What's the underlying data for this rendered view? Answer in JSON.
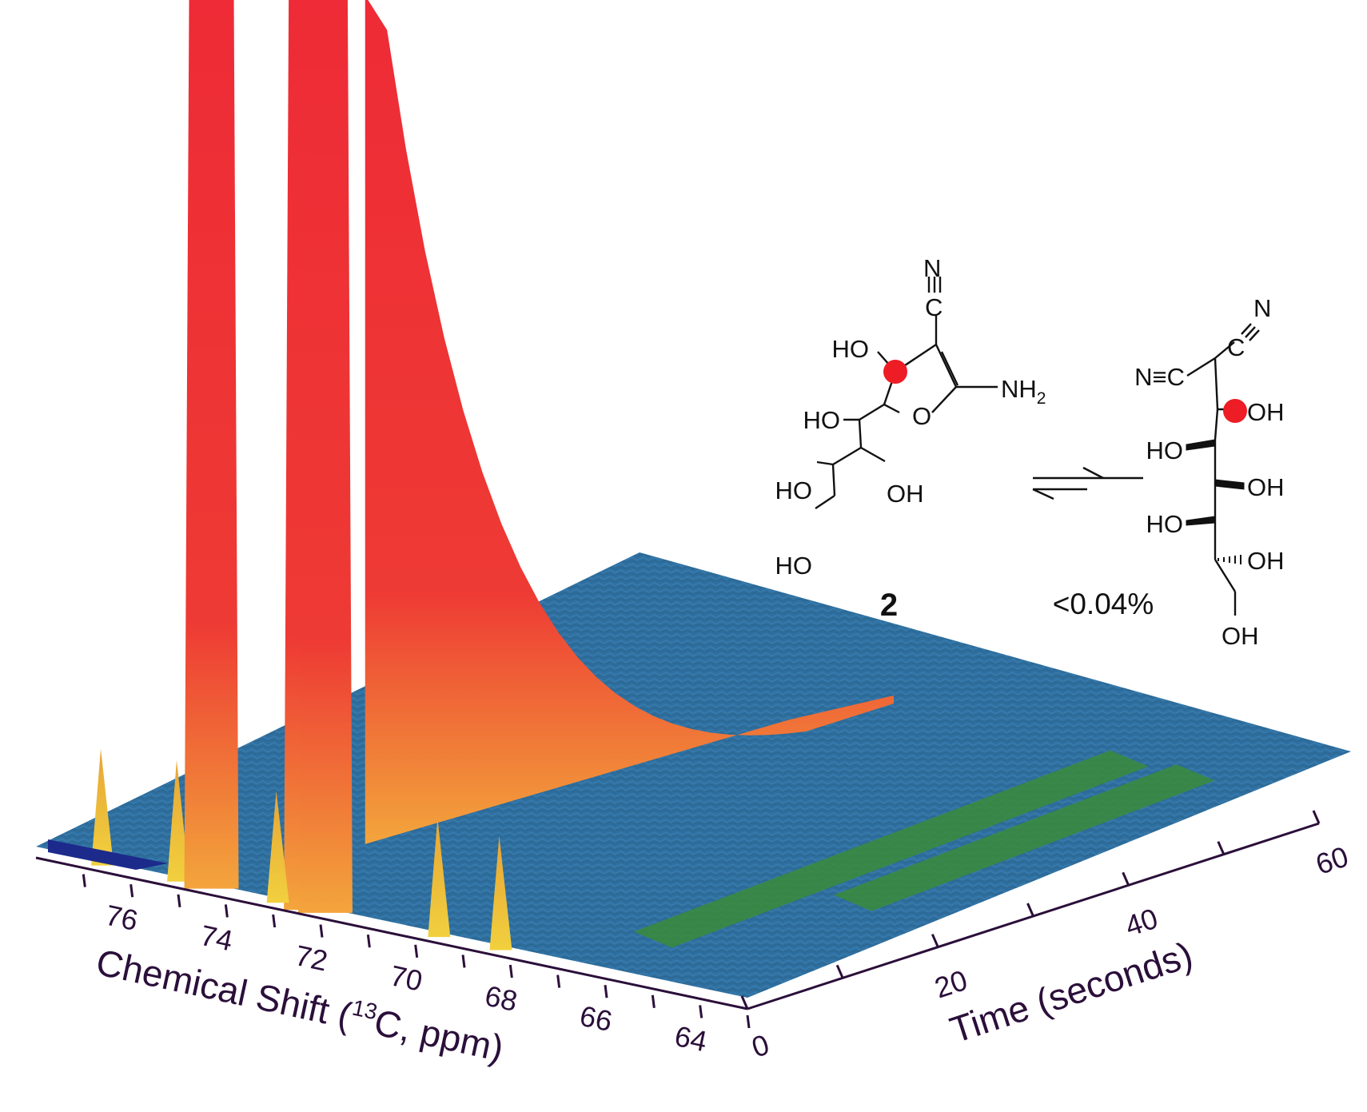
{
  "chart_data": {
    "type": "surface",
    "x_axis": {
      "label_parts": [
        "Chemical Shift (",
        "13",
        "C, ppm)"
      ],
      "ticks": [
        "76",
        "74",
        "72",
        "70",
        "68",
        "66",
        "64"
      ],
      "range": [
        63,
        78
      ],
      "reversed": true
    },
    "y_axis": {
      "label": "Time (seconds)",
      "ticks": [
        "0",
        "20",
        "40",
        "60"
      ],
      "range": [
        0,
        60
      ]
    },
    "peaks": [
      {
        "ppm": 76.6,
        "height": 0.08,
        "decay": 0.02
      },
      {
        "ppm": 75.0,
        "height": 0.1,
        "decay": 0.02
      },
      {
        "ppm": 74.3,
        "height": 1.0,
        "decay": 0.85
      },
      {
        "ppm": 72.2,
        "height": 1.0,
        "decay": 0.85
      },
      {
        "ppm": 71.9,
        "height": 1.0,
        "decay": 0.85
      },
      {
        "ppm": 72.9,
        "height": 0.06,
        "decay": 0.02
      },
      {
        "ppm": 69.5,
        "height": 0.09,
        "decay": 0.02
      },
      {
        "ppm": 68.2,
        "height": 0.07,
        "decay": 0.02
      }
    ],
    "surface_colors": {
      "high": "#ee2b36",
      "mid": "#f2a23c",
      "low_mid": "#f6d23e",
      "baseline": "#2f6fa3",
      "green": "#2e8b3e",
      "deep": "#1c2a8c"
    }
  },
  "scheme": {
    "compound_label": "2",
    "equilibrium_text": "<0.04%",
    "labels_left": {
      "n_top": "N",
      "c_top": "C",
      "ho_ring": "HO",
      "nh2_main": "NH",
      "nh2_sub": "2",
      "o_ring": "O",
      "ho_1": "HO",
      "ho_2": "HO",
      "oh_2": "OH",
      "ho_3": "HO"
    },
    "labels_right": {
      "n_top": "N",
      "c_top": "C",
      "nc_left": "N≡C",
      "oh_1": "OH",
      "ho_1": "HO",
      "oh_2": "OH",
      "ho_2": "HO",
      "oh_3": "OH",
      "oh_4": "OH"
    },
    "marker_color": "#ee1c24"
  }
}
